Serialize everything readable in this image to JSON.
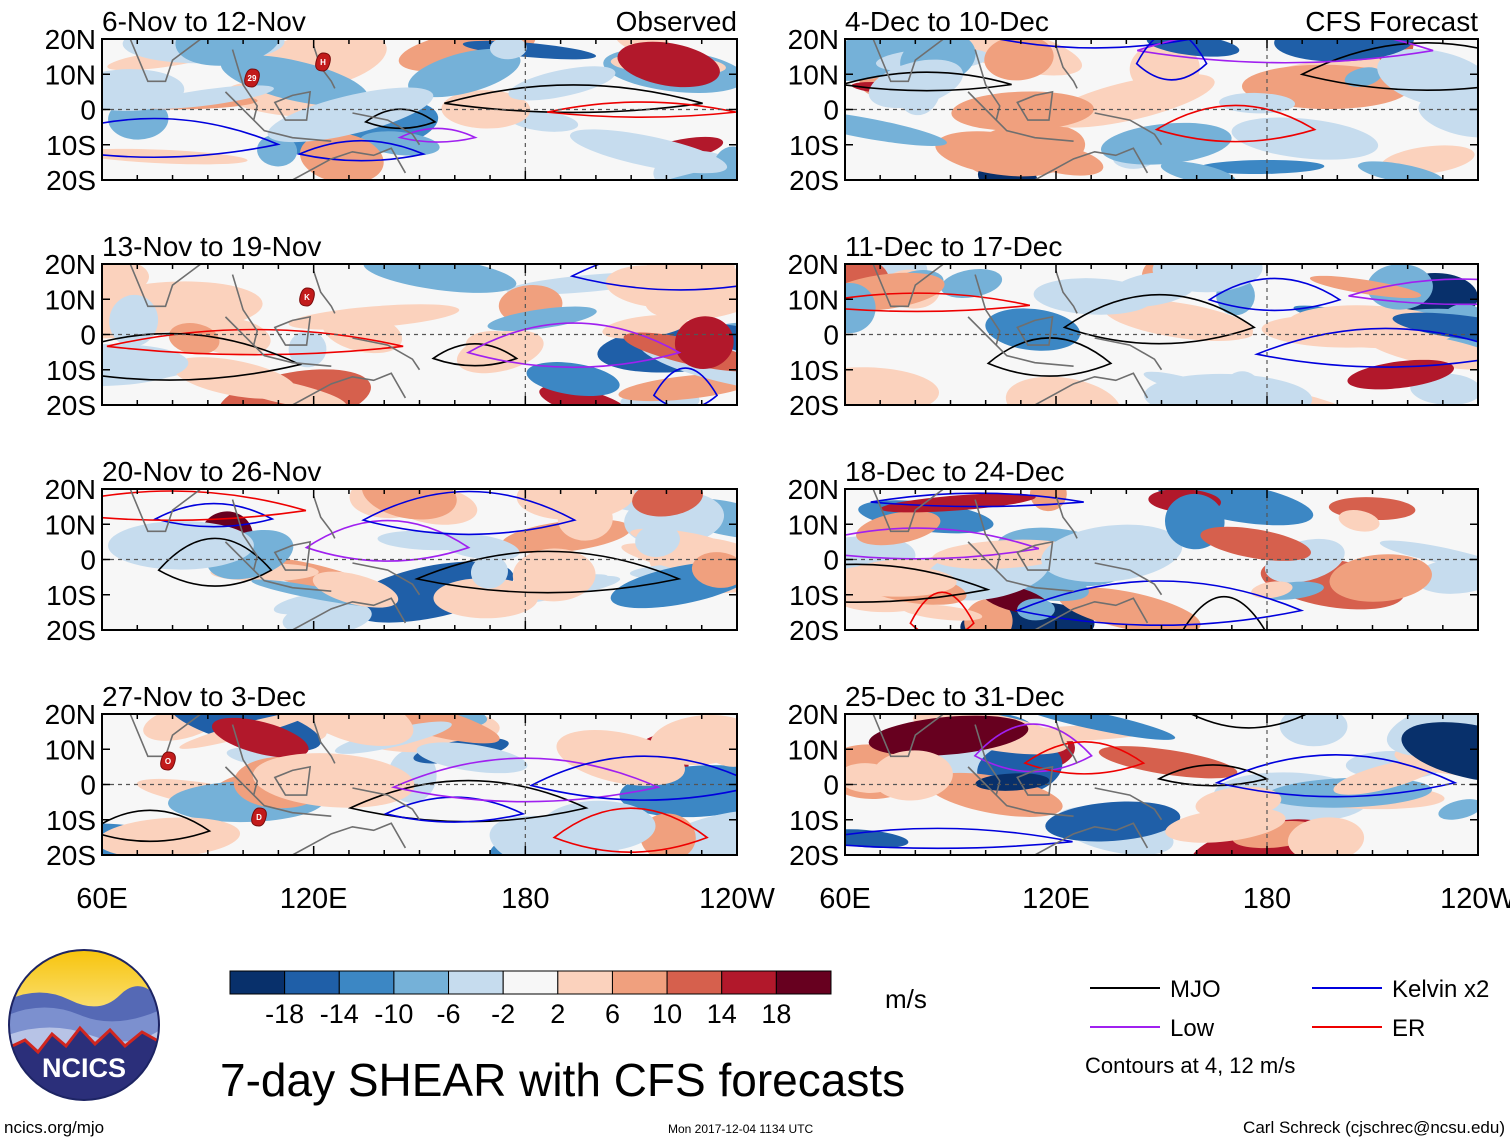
{
  "chart_data": {
    "type": "heatmap",
    "title": "7-day SHEAR with CFS forecasts",
    "units": "m/s",
    "observed_label": "Observed",
    "forecast_label": "CFS Forecast",
    "y_ticks": [
      "20N",
      "10N",
      "0",
      "10S",
      "20S"
    ],
    "x_ticks": [
      "60E",
      "120E",
      "180",
      "120W"
    ],
    "xlim": [
      60,
      240
    ],
    "ylim": [
      -20,
      20
    ],
    "panels": [
      {
        "period": "6-Nov to 12-Nov",
        "source": "observed"
      },
      {
        "period": "13-Nov to 19-Nov",
        "source": "observed"
      },
      {
        "period": "20-Nov to 26-Nov",
        "source": "observed"
      },
      {
        "period": "27-Nov to 3-Dec",
        "source": "observed"
      },
      {
        "period": "4-Dec to 10-Dec",
        "source": "forecast"
      },
      {
        "period": "11-Dec to 17-Dec",
        "source": "forecast"
      },
      {
        "period": "18-Dec to 24-Dec",
        "source": "forecast"
      },
      {
        "period": "25-Dec to 31-Dec",
        "source": "forecast"
      }
    ],
    "colorbar": {
      "labels": [
        "-18",
        "-14",
        "-10",
        "-6",
        "-2",
        "2",
        "6",
        "10",
        "14",
        "18"
      ],
      "colors": [
        "#08306b",
        "#1f5fa8",
        "#3c87c4",
        "#75b1d8",
        "#c6dcee",
        "#f7f7f7",
        "#fbd2bd",
        "#f0a07e",
        "#d6604d",
        "#b2182b",
        "#67001f"
      ]
    },
    "legend": [
      {
        "label": "MJO",
        "color": "#000000"
      },
      {
        "label": "Kelvin x2",
        "color": "#0000dd"
      },
      {
        "label": "Low",
        "color": "#a020f0"
      },
      {
        "label": "ER",
        "color": "#ee0000"
      }
    ],
    "contour_note": "Contours at 4, 12 m/s",
    "storm_markers": [
      {
        "panel": 0,
        "label": "29"
      },
      {
        "panel": 0,
        "label": "H"
      },
      {
        "panel": 1,
        "label": "K"
      },
      {
        "panel": 3,
        "label": "O"
      },
      {
        "panel": 3,
        "label": "D"
      }
    ]
  },
  "footer": {
    "logo_text": "NCICS",
    "site": "ncics.org/mjo",
    "timestamp": "Mon 2017-12-04 1134 UTC",
    "credit": "Carl Schreck (cjschrec@ncsu.edu)"
  }
}
